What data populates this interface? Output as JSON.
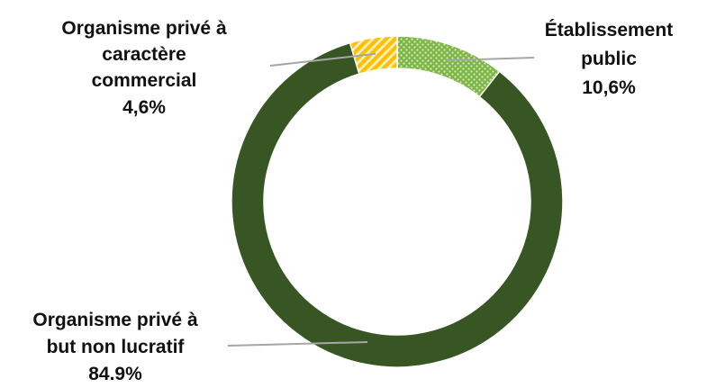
{
  "chart_data": {
    "type": "pie",
    "variant": "donut",
    "title": "",
    "slices": [
      {
        "label_lines": [
          "Établissement",
          "public"
        ],
        "value_text": "10,6%",
        "value": 10.6,
        "color": "#7DB547",
        "pattern": "dots"
      },
      {
        "label_lines": [
          "Organisme privé à",
          "but non lucratif"
        ],
        "value_text": "84.9%",
        "value": 84.9,
        "color": "#375623",
        "pattern": "none"
      },
      {
        "label_lines": [
          "Organisme privé à",
          "caractère",
          "commercial"
        ],
        "value_text": "4,6%",
        "value": 4.6,
        "color": "#FFC000",
        "pattern": "diagonal"
      }
    ],
    "leader_line_color": "#A6A6A6",
    "legend": "none"
  }
}
